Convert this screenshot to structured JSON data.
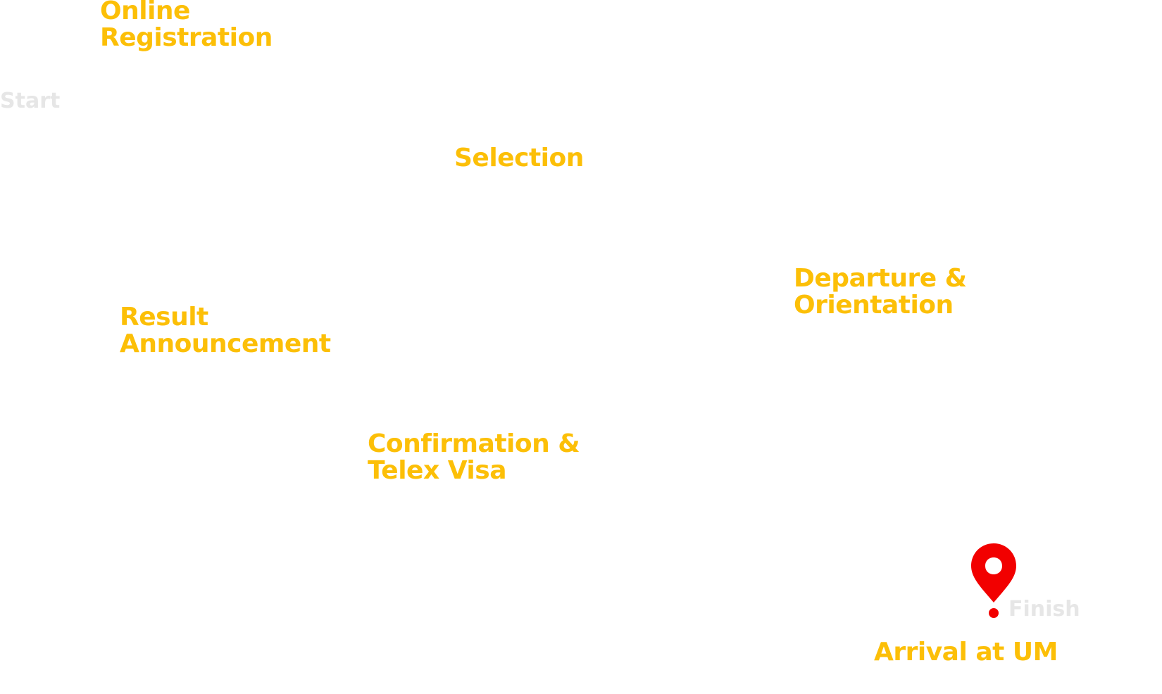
{
  "markers": {
    "start": "Start",
    "finish": "Finish"
  },
  "steps": [
    {
      "lines": [
        "Online",
        "Registration"
      ]
    },
    {
      "lines": [
        "Selection"
      ]
    },
    {
      "lines": [
        "Departure &",
        "Orientation"
      ]
    },
    {
      "lines": [
        "Result",
        "Announcement"
      ]
    },
    {
      "lines": [
        "Confirmation &",
        "Telex Visa"
      ]
    },
    {
      "lines": [
        "Arrival at UM"
      ]
    }
  ],
  "colors": {
    "step_text": "#fcbf07",
    "marker_text": "#e6e6e6",
    "pin": "#f20000"
  },
  "icons": {
    "finish_pin": "map-pin-icon"
  }
}
